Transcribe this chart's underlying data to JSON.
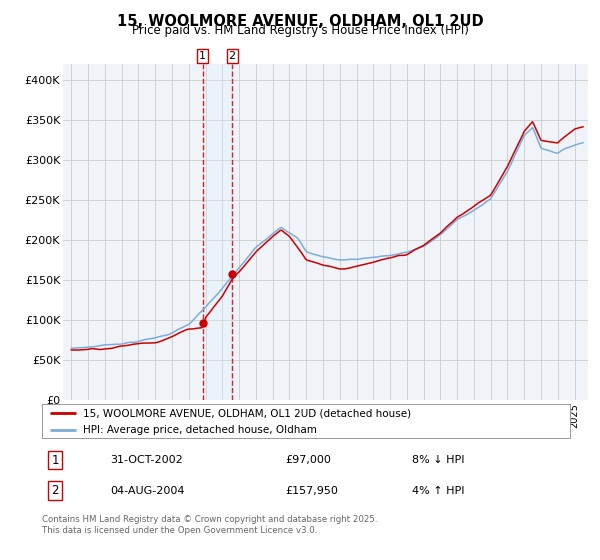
{
  "title": "15, WOOLMORE AVENUE, OLDHAM, OL1 2UD",
  "subtitle": "Price paid vs. HM Land Registry's House Price Index (HPI)",
  "legend_line1": "15, WOOLMORE AVENUE, OLDHAM, OL1 2UD (detached house)",
  "legend_line2": "HPI: Average price, detached house, Oldham",
  "sale1_date": "31-OCT-2002",
  "sale1_price": 97000,
  "sale1_hpi": "8% ↓ HPI",
  "sale2_date": "04-AUG-2004",
  "sale2_price": 157950,
  "sale2_hpi": "4% ↑ HPI",
  "footnote": "Contains HM Land Registry data © Crown copyright and database right 2025.\nThis data is licensed under the Open Government Licence v3.0.",
  "red_line_color": "#cc0000",
  "blue_line_color": "#7aaddb",
  "sale_marker_color": "#cc0000",
  "shaded_region_color": "#ddeeff",
  "dashed_vline_color": "#cc0000",
  "grid_color": "#cccccc",
  "background_color": "#f0f4f8",
  "ylim": [
    0,
    420000
  ],
  "yticks": [
    0,
    50000,
    100000,
    150000,
    200000,
    250000,
    300000,
    350000,
    400000
  ],
  "ytick_labels": [
    "£0",
    "£50K",
    "£100K",
    "£150K",
    "£200K",
    "£250K",
    "£300K",
    "£350K",
    "£400K"
  ],
  "sale1_x": 2002.83,
  "sale2_x": 2004.58,
  "xlim_left": 1994.5,
  "xlim_right": 2025.8,
  "xticks_start": 1995,
  "xticks_end": 2025
}
